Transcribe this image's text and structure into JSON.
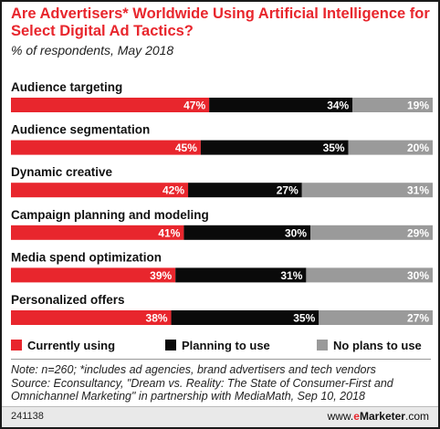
{
  "title": "Are Advertisers* Worldwide Using Artificial Intelligence for Select Digital Ad Tactics?",
  "subtitle": "% of respondents, May 2018",
  "colors": {
    "currently": "#e8262d",
    "planning": "#0a0a0a",
    "no_plans": "#9a9a9a"
  },
  "legend": [
    {
      "label": "Currently using",
      "color": "#e8262d"
    },
    {
      "label": "Planning to use",
      "color": "#0a0a0a"
    },
    {
      "label": "No plans to use",
      "color": "#9a9a9a"
    }
  ],
  "chart_data": {
    "type": "bar",
    "orientation": "horizontal",
    "stacked": true,
    "percent_suffix": "%",
    "categories": [
      "Audience targeting",
      "Audience segmentation",
      "Dynamic creative",
      "Campaign planning and modeling",
      "Media spend optimization",
      "Personalized offers"
    ],
    "series": [
      {
        "name": "Currently using",
        "values": [
          47,
          45,
          42,
          41,
          39,
          38
        ]
      },
      {
        "name": "Planning to use",
        "values": [
          34,
          35,
          27,
          30,
          31,
          35
        ]
      },
      {
        "name": "No plans to use",
        "values": [
          19,
          20,
          31,
          29,
          30,
          27
        ]
      }
    ],
    "xlim": [
      0,
      100
    ],
    "legend_position": "bottom"
  },
  "note": "Note: n=260; *includes ad agencies, brand advertisers and tech vendors",
  "source": "Source: Econsultancy, \"Dream vs. Reality: The State of Consumer-First and Omnichannel Marketing\" in partnership with MediaMath, Sep 10, 2018",
  "footer": {
    "chart_id": "241138",
    "brand_prefix": "www.",
    "brand_e": "e",
    "brand_main": "Marketer",
    "brand_suffix": ".com"
  }
}
